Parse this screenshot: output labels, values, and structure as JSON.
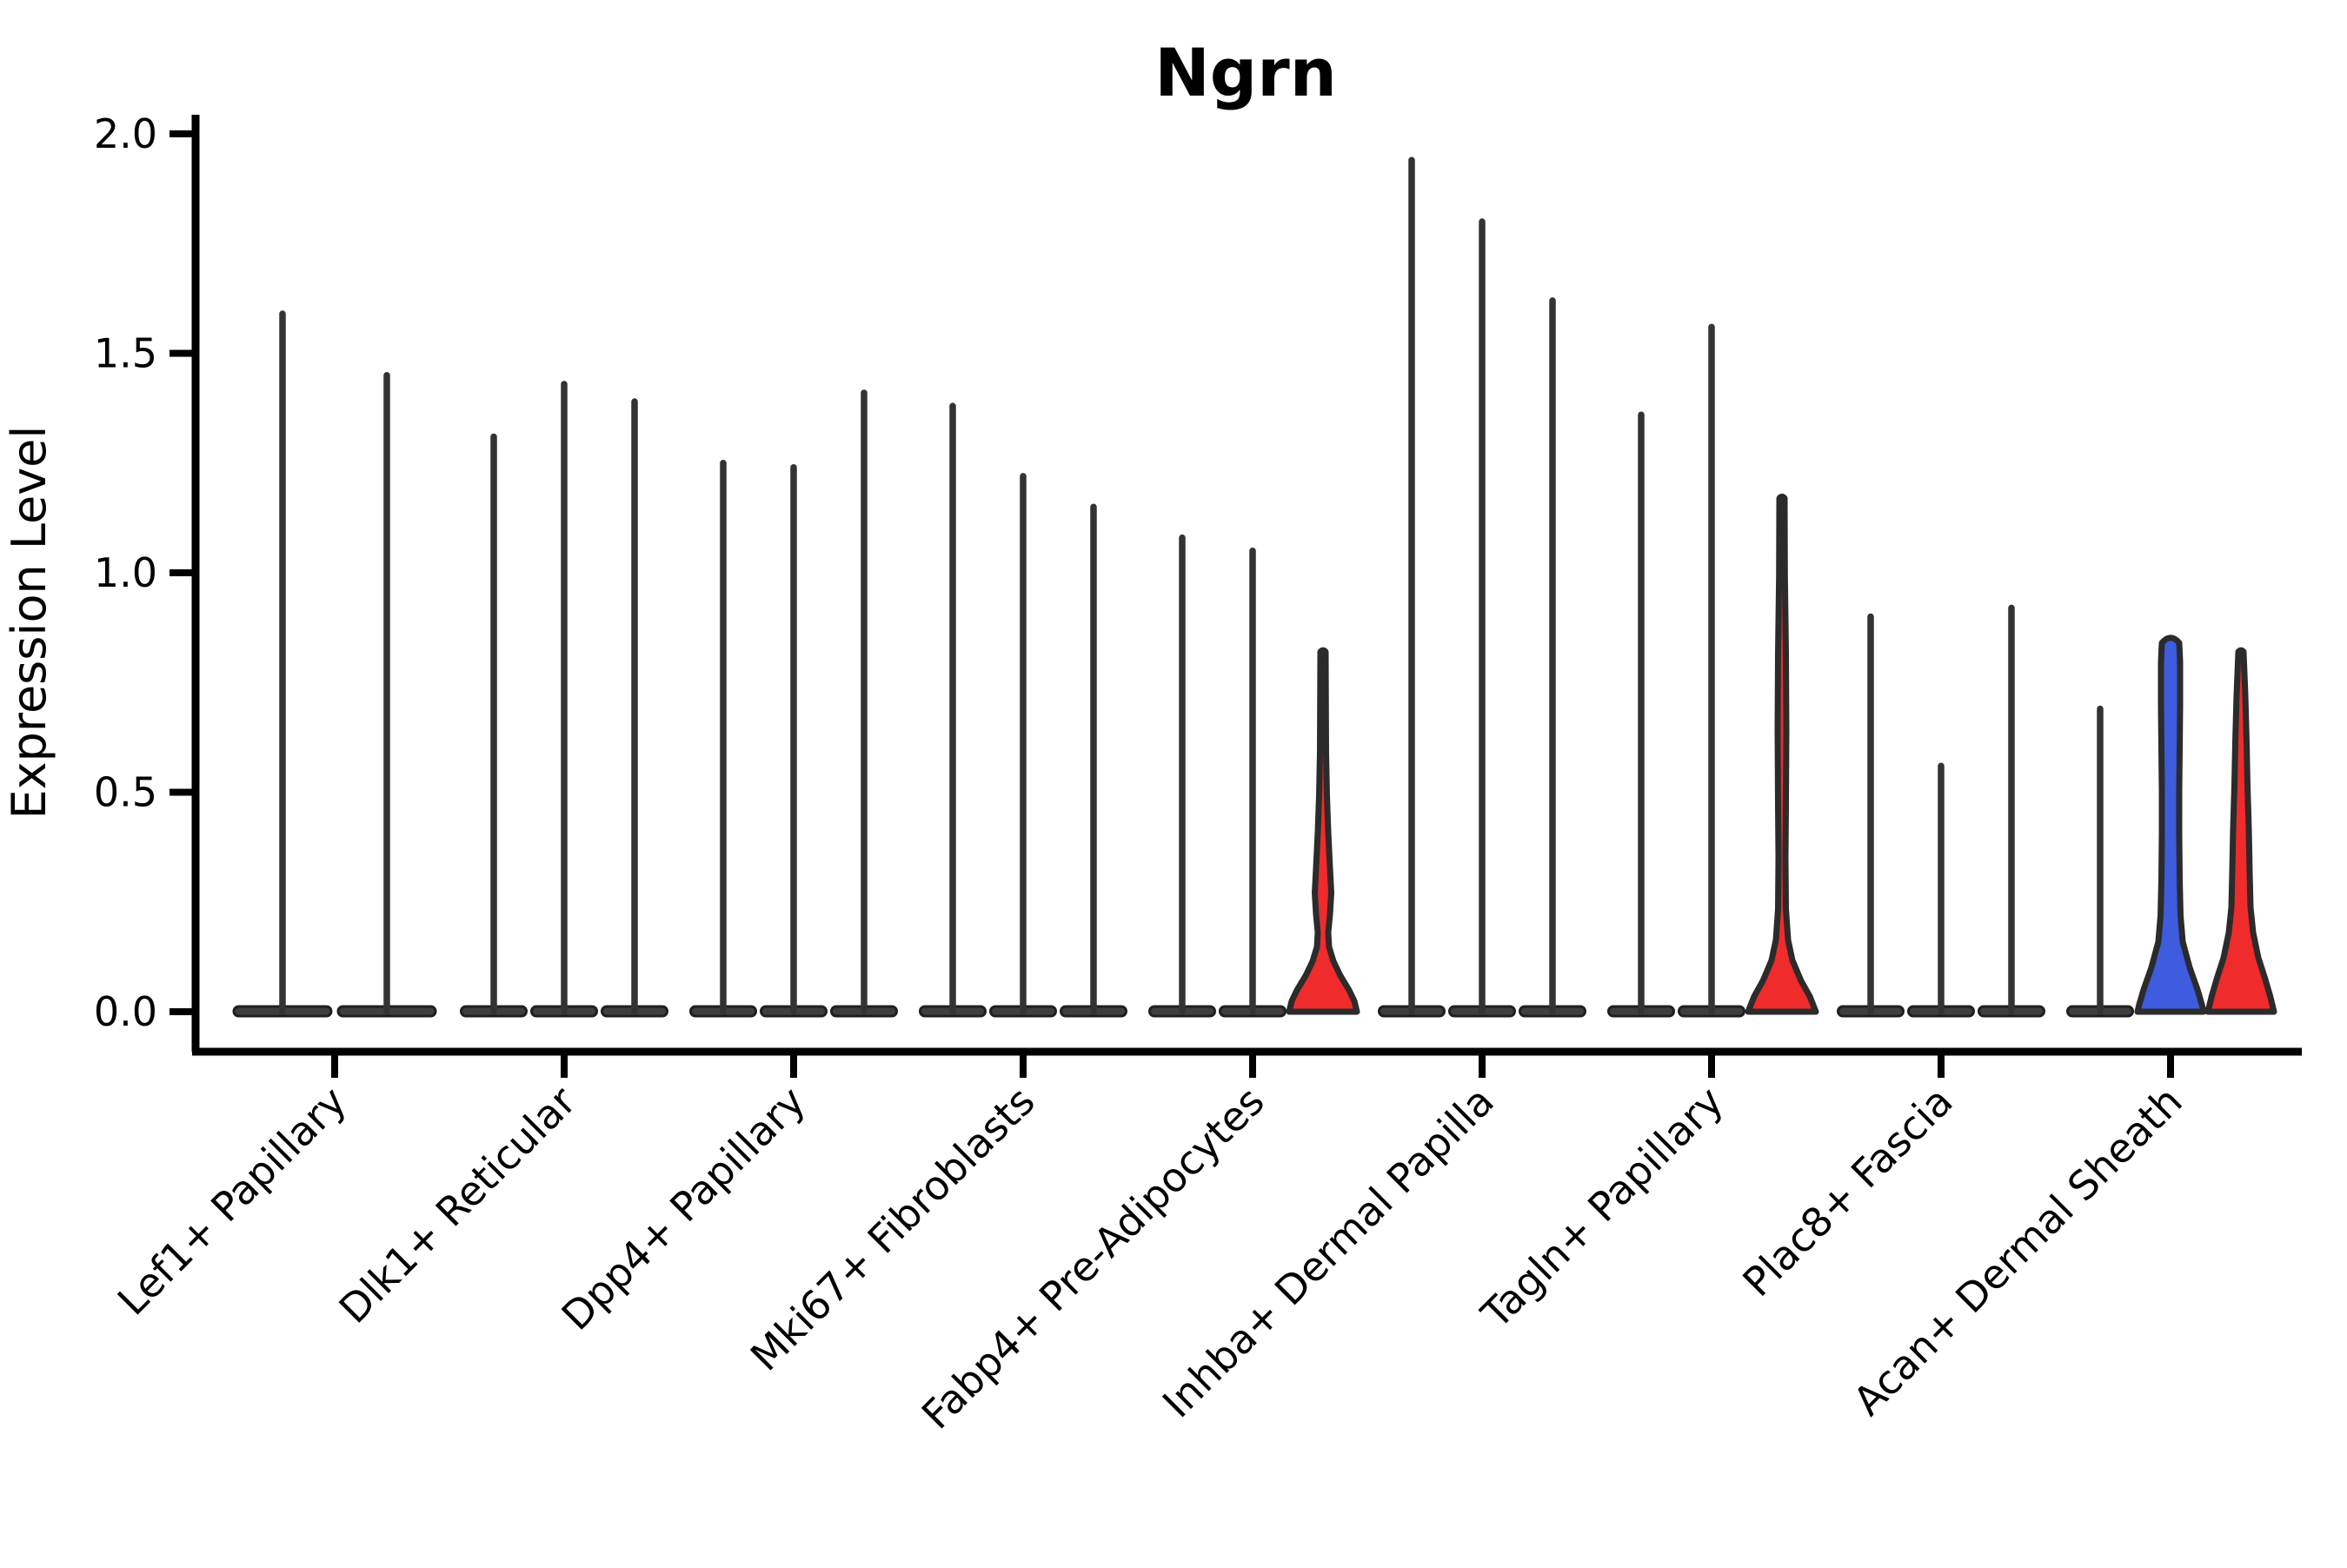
{
  "title": "Ngrn",
  "axes": {
    "y_label": "Expression Level",
    "y_ticks": [
      "0.0",
      "0.5",
      "1.0",
      "1.5",
      "2.0"
    ],
    "x_tick_labels": [
      "Lef1+ Papillary",
      "Dlk1+ Reticular",
      "Dpp4+ Papillary",
      "Mki67+ Fibroblasts",
      "Fabp4+ Pre-Adipocytes",
      "Inhba+ Dermal Papilla",
      "Tagln+ Papillary",
      "Plac8+ Fascia",
      "Acan+ Dermal Sheath"
    ]
  },
  "colors": {
    "background": "#ffffff",
    "axis": "#000000",
    "violin_outline": "#2b2b2b",
    "spike": "#333333",
    "base_fill": "#3e3e3e",
    "base_edge": "#1f1f1f",
    "red": "#EF2B2B",
    "blue": "#3D5CDE"
  },
  "chart_data": {
    "type": "violin",
    "title": "Ngrn",
    "xlabel": "",
    "ylabel": "Expression Level",
    "ylim": [
      0,
      2.0
    ],
    "y_ticks": [
      0,
      0.5,
      1.0,
      1.5,
      2.0
    ],
    "grid": false,
    "legend": null,
    "x_tick_rotation": 45,
    "categories": [
      "Lef1+ Papillary",
      "Dlk1+ Reticular",
      "Dpp4+ Papillary",
      "Mki67+ Fibroblasts",
      "Fabp4+ Pre-Adipocytes",
      "Inhba+ Dermal Papilla",
      "Tagln+ Papillary",
      "Plac8+ Fascia",
      "Acan+ Dermal Sheath"
    ],
    "description": "Violin plot of Ngrn expression per fibroblast cell-type cluster; most violins are collapsed at 0 with a thin whisker up to the max expression value; a few violins (red/blue) have visible density bodies near 0.",
    "groups": [
      {
        "category": "Lef1+ Papillary",
        "violins": [
          {
            "max": 1.59,
            "fill": "dark",
            "shape": "spike"
          },
          {
            "max": 1.45,
            "fill": "dark",
            "shape": "spike"
          }
        ]
      },
      {
        "category": "Dlk1+ Reticular",
        "violins": [
          {
            "max": 1.31,
            "fill": "dark",
            "shape": "spike"
          },
          {
            "max": 1.43,
            "fill": "dark",
            "shape": "spike"
          },
          {
            "max": 1.39,
            "fill": "dark",
            "shape": "spike"
          }
        ]
      },
      {
        "category": "Dpp4+ Papillary",
        "violins": [
          {
            "max": 1.25,
            "fill": "dark",
            "shape": "spike"
          },
          {
            "max": 1.24,
            "fill": "dark",
            "shape": "spike"
          },
          {
            "max": 1.41,
            "fill": "dark",
            "shape": "spike"
          }
        ]
      },
      {
        "category": "Mki67+ Fibroblasts",
        "violins": [
          {
            "max": 1.38,
            "fill": "dark",
            "shape": "spike"
          },
          {
            "max": 1.22,
            "fill": "dark",
            "shape": "spike"
          },
          {
            "max": 1.15,
            "fill": "dark",
            "shape": "spike"
          }
        ]
      },
      {
        "category": "Fabp4+ Pre-Adipocytes",
        "violins": [
          {
            "max": 1.08,
            "fill": "dark",
            "shape": "spike"
          },
          {
            "max": 1.05,
            "fill": "dark",
            "shape": "spike"
          },
          {
            "max": 0.82,
            "fill": "red",
            "shape": "bell_bulge"
          }
        ]
      },
      {
        "category": "Inhba+ Dermal Papilla",
        "violins": [
          {
            "max": 1.94,
            "fill": "dark",
            "shape": "spike"
          },
          {
            "max": 1.8,
            "fill": "dark",
            "shape": "spike"
          },
          {
            "max": 1.62,
            "fill": "dark",
            "shape": "spike"
          }
        ]
      },
      {
        "category": "Tagln+ Papillary",
        "violins": [
          {
            "max": 1.36,
            "fill": "dark",
            "shape": "spike"
          },
          {
            "max": 1.56,
            "fill": "dark",
            "shape": "spike"
          },
          {
            "max": 1.17,
            "fill": "red",
            "shape": "bell_small"
          }
        ]
      },
      {
        "category": "Plac8+ Fascia",
        "violins": [
          {
            "max": 0.9,
            "fill": "dark",
            "shape": "spike"
          },
          {
            "max": 0.56,
            "fill": "dark",
            "shape": "spike"
          },
          {
            "max": 0.92,
            "fill": "dark",
            "shape": "spike"
          }
        ]
      },
      {
        "category": "Acan+ Dermal Sheath",
        "violins": [
          {
            "max": 0.69,
            "fill": "dark",
            "shape": "spike"
          },
          {
            "max": 0.84,
            "fill": "blue",
            "shape": "column"
          },
          {
            "max": 0.82,
            "fill": "red",
            "shape": "bell_mid"
          }
        ]
      }
    ]
  }
}
